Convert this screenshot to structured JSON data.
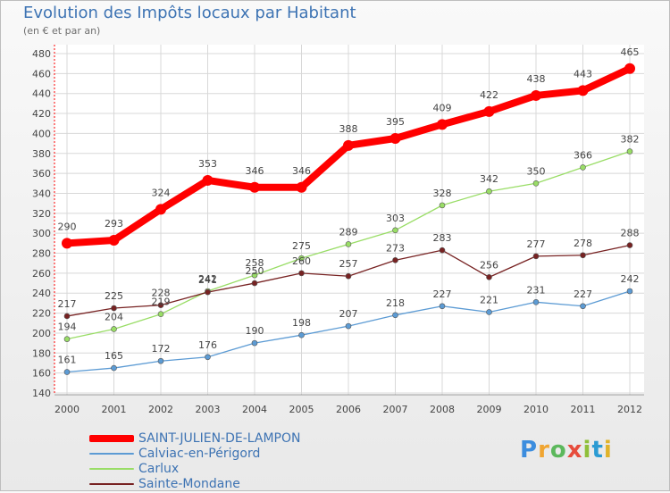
{
  "title": "Evolution des Impôts locaux par Habitant",
  "subtitle": "(en € et par an)",
  "logo": {
    "text": "Proxiti",
    "parts": [
      "P",
      "r",
      "o",
      "x",
      "i",
      "t",
      "i"
    ]
  },
  "chart_data": {
    "type": "line",
    "x": [
      "2000",
      "2001",
      "2002",
      "2003",
      "2004",
      "2005",
      "2006",
      "2007",
      "2008",
      "2009",
      "2010",
      "2011",
      "2012"
    ],
    "ylim": [
      140,
      480
    ],
    "yticks": [
      140,
      160,
      180,
      200,
      220,
      240,
      260,
      280,
      300,
      320,
      340,
      360,
      380,
      400,
      420,
      440,
      460,
      480
    ],
    "grid": true,
    "legend_position": "bottom-left",
    "series": [
      {
        "name": "SAINT-JULIEN-DE-LAMPON",
        "color": "#ff0000",
        "emphasis": true,
        "values": [
          290,
          293,
          324,
          353,
          346,
          346,
          388,
          395,
          409,
          422,
          438,
          443,
          465
        ]
      },
      {
        "name": "Calviac-en-Périgord",
        "color": "#5c9bd4",
        "emphasis": false,
        "values": [
          161,
          165,
          172,
          176,
          190,
          198,
          207,
          218,
          227,
          221,
          231,
          227,
          242
        ]
      },
      {
        "name": "Carlux",
        "color": "#99dd66",
        "emphasis": false,
        "values": [
          194,
          204,
          219,
          242,
          258,
          275,
          289,
          303,
          328,
          342,
          350,
          366,
          382
        ]
      },
      {
        "name": "Sainte-Mondane",
        "color": "#772222",
        "emphasis": false,
        "values": [
          217,
          225,
          228,
          241,
          250,
          260,
          257,
          273,
          283,
          256,
          277,
          278,
          288
        ]
      }
    ]
  }
}
